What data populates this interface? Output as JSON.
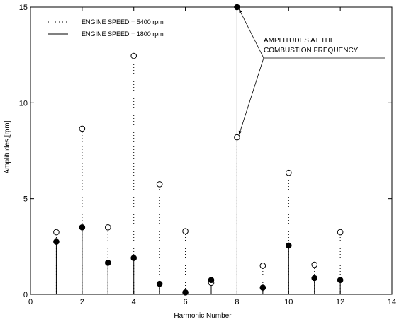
{
  "chart_data": {
    "type": "stem",
    "xlabel": "Harmonic Number",
    "ylabel": "Amplitudes,[rpm]",
    "xlim": [
      0,
      14
    ],
    "ylim": [
      0,
      15
    ],
    "x_ticks": [
      0,
      2,
      4,
      6,
      8,
      10,
      12,
      14
    ],
    "y_ticks": [
      0,
      5,
      10,
      15
    ],
    "grid": false,
    "legend_position": "top-left",
    "legend": [
      {
        "label": "ENGINE SPEED = 5400 rpm",
        "style": "dotted",
        "marker": "open-circle"
      },
      {
        "label": "ENGINE SPEED = 1800 rpm",
        "style": "solid",
        "marker": "filled-circle"
      }
    ],
    "annotation": {
      "lines": [
        "AMPLITUDES AT THE",
        "COMBUSTION FREQUENCY"
      ],
      "points_to": [
        {
          "x": 8,
          "y": 15.0
        },
        {
          "x": 8,
          "y": 8.2
        }
      ]
    },
    "series": [
      {
        "name": "ENGINE SPEED = 5400 rpm",
        "line": "dotted",
        "marker": "open",
        "x": [
          1,
          2,
          3,
          4,
          5,
          6,
          7,
          8,
          9,
          10,
          11,
          12
        ],
        "y": [
          3.25,
          8.65,
          3.5,
          12.45,
          5.75,
          3.3,
          0.6,
          8.2,
          1.5,
          6.35,
          1.55,
          3.25
        ]
      },
      {
        "name": "ENGINE SPEED = 1800 rpm",
        "line": "solid",
        "marker": "filled",
        "x": [
          1,
          2,
          3,
          4,
          5,
          6,
          7,
          8,
          9,
          10,
          11,
          12
        ],
        "y": [
          2.75,
          3.5,
          1.65,
          1.9,
          0.55,
          0.1,
          0.75,
          15.0,
          0.35,
          2.55,
          0.85,
          0.75
        ]
      }
    ]
  }
}
